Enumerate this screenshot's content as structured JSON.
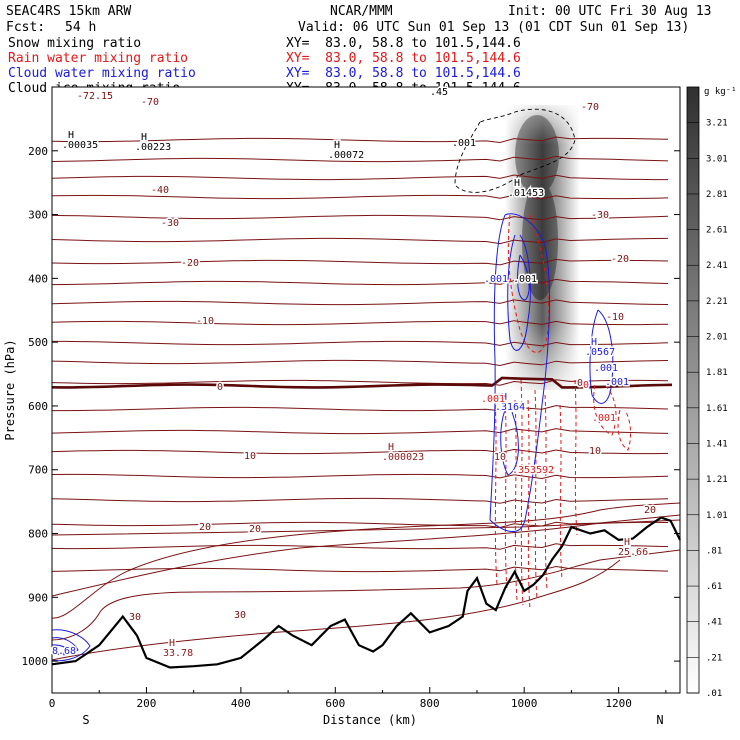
{
  "header": {
    "model": "SEAC4RS 15km ARW",
    "org": "NCAR/MMM",
    "init": "Init: 00 UTC Fri 30 Aug 13",
    "fcst_label": "Fcst:",
    "fcst_value": "54 h",
    "valid": "Valid: 06 UTC Sun 01 Sep 13 (01 CDT Sun 01 Sep 13)"
  },
  "fields": [
    {
      "label": "Snow mixing ratio",
      "xy": "XY=  83.0, 58.8 to 101.5,144.6",
      "color": "#000000"
    },
    {
      "label": "Rain water mixing ratio",
      "xy": "XY=  83.0, 58.8 to 101.5,144.6",
      "color": "#e01818"
    },
    {
      "label": "Cloud water mixing ratio",
      "xy": "XY=  83.0, 58.8 to 101.5,144.6",
      "color": "#1a1ae0"
    },
    {
      "label": "Cloud ice mixing ratio",
      "xy": "XY=  83.0, 58.8 to 101.5,144.6",
      "color": "#000000"
    }
  ],
  "chart_data": {
    "type": "cross-section",
    "xlabel": "Distance (km)",
    "ylabel": "Pressure (hPa)",
    "xlim": [
      0,
      1330
    ],
    "ylim": [
      1050,
      100
    ],
    "y_scale": "linear",
    "x_ticks": [
      0,
      200,
      400,
      600,
      800,
      1000,
      1200
    ],
    "y_ticks": [
      200,
      300,
      400,
      500,
      600,
      700,
      800,
      900,
      1000
    ],
    "direction_left": "S",
    "direction_right": "N",
    "colorbar": {
      "unit": "g kg⁻¹",
      "labels": [
        "3.21",
        "3.01",
        "2.81",
        "2.61",
        "2.41",
        "2.21",
        "2.01",
        "1.81",
        "1.61",
        "1.41",
        "1.21",
        "1.01",
        ".81",
        ".61",
        ".41",
        ".21",
        ".01"
      ]
    },
    "isotherm_labels": [
      "-70",
      "-40",
      "-30",
      "-20",
      "-10",
      "0",
      "10",
      "20",
      "30"
    ],
    "isotherm_label_texts": [
      "-72.15",
      "-70",
      "-70",
      "-40",
      "-30",
      "-30",
      "-20",
      "-20",
      "-10",
      "-10",
      "0",
      "0",
      "10",
      "10",
      "10",
      "20",
      "20",
      "20",
      "30",
      "30"
    ],
    "extrema_labels": [
      {
        "mark": "H",
        "value": ".00035",
        "color": "#000000"
      },
      {
        "mark": "H",
        "value": ".00223",
        "color": "#000000"
      },
      {
        "mark": "H",
        "value": ".00072",
        "color": "#000000"
      },
      {
        "mark": "H",
        "value": ".01453",
        "color": "#000000"
      },
      {
        "mark": "H",
        "value": ".0567",
        "color": "#1a1ae0"
      },
      {
        "mark": "H",
        "value": ".3164",
        "color": "#1a1ae0"
      },
      {
        "mark": "H",
        "value": ".000023",
        "color": "#8b1a1a"
      },
      {
        "mark": "H",
        "value": "33.78",
        "color": "#8b1a1a"
      },
      {
        "mark": "H",
        "value": "25.66",
        "color": "#8b1a1a"
      },
      {
        "mark": "",
        "value": ".353592",
        "color": "#e01818"
      },
      {
        "mark": "",
        "value": "8.68",
        "color": "#1a1ae0"
      },
      {
        "mark": "",
        "value": ".45",
        "color": "#000000"
      }
    ],
    "contour_labels": [
      ".001",
      ".001",
      ".001",
      ".001",
      ".001",
      ".001",
      ".001",
      "0"
    ],
    "terrain": [
      [
        0,
        1005
      ],
      [
        50,
        1000
      ],
      [
        100,
        975
      ],
      [
        150,
        930
      ],
      [
        180,
        960
      ],
      [
        200,
        995
      ],
      [
        250,
        1010
      ],
      [
        300,
        1008
      ],
      [
        350,
        1005
      ],
      [
        400,
        995
      ],
      [
        450,
        965
      ],
      [
        480,
        945
      ],
      [
        510,
        960
      ],
      [
        550,
        975
      ],
      [
        590,
        945
      ],
      [
        620,
        935
      ],
      [
        650,
        975
      ],
      [
        680,
        985
      ],
      [
        700,
        975
      ],
      [
        730,
        945
      ],
      [
        760,
        925
      ],
      [
        800,
        955
      ],
      [
        840,
        945
      ],
      [
        870,
        930
      ],
      [
        880,
        890
      ],
      [
        900,
        870
      ],
      [
        920,
        910
      ],
      [
        940,
        920
      ],
      [
        960,
        885
      ],
      [
        980,
        860
      ],
      [
        1000,
        890
      ],
      [
        1020,
        880
      ],
      [
        1040,
        865
      ],
      [
        1060,
        840
      ],
      [
        1080,
        820
      ],
      [
        1100,
        790
      ],
      [
        1140,
        800
      ],
      [
        1170,
        795
      ],
      [
        1200,
        810
      ],
      [
        1230,
        808
      ],
      [
        1260,
        790
      ],
      [
        1290,
        775
      ],
      [
        1310,
        780
      ],
      [
        1330,
        810
      ]
    ]
  }
}
